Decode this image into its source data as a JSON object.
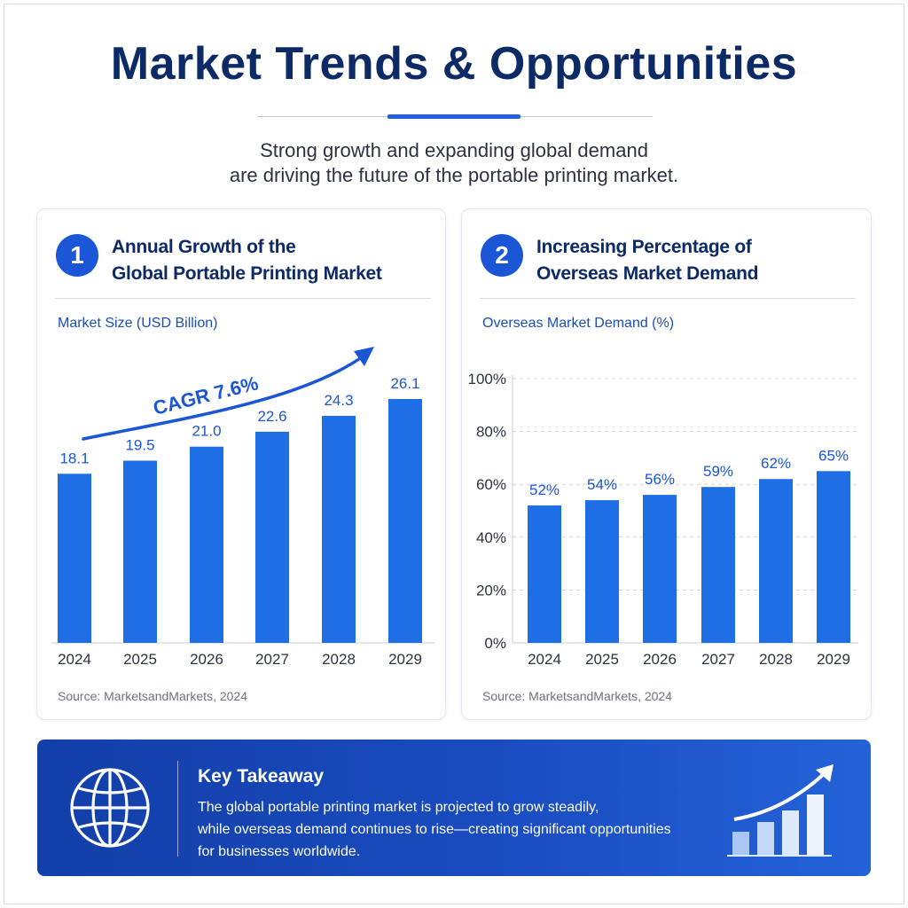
{
  "header": {
    "title": "Market Trends & Opportunities",
    "subtitle_line1": "Strong growth and expanding global demand",
    "subtitle_line2": "are driving the future of the portable printing market."
  },
  "colors": {
    "navy": "#0c2a66",
    "bar_blue": "#1e6fe6",
    "accent": "#1a56d6",
    "takeaway_bg": "#1a4cc0"
  },
  "cards": [
    {
      "number": "1",
      "title_line1": "Annual Growth of the",
      "title_line2": "Global Portable Printing Market",
      "axis_title": "Market Size (USD Billion)",
      "source": "Source: MarketsandMarkets, 2024"
    },
    {
      "number": "2",
      "title_line1": "Increasing Percentage of",
      "title_line2": "Overseas Market Demand",
      "axis_title": "Overseas Market Demand (%)",
      "source": "Source: MarketsandMarkets, 2024"
    }
  ],
  "chart_data": [
    {
      "type": "bar",
      "categories": [
        "2024",
        "2025",
        "2026",
        "2027",
        "2028",
        "2029"
      ],
      "values": [
        18.1,
        19.5,
        21.0,
        22.6,
        24.3,
        26.1
      ],
      "value_labels": [
        "18.1",
        "19.5",
        "21.0",
        "22.6",
        "24.3",
        "26.1"
      ],
      "ylabel": "Market Size (USD Billion)",
      "annotation": "CAGR 7.6%",
      "ylim": [
        0,
        28
      ],
      "grid": false,
      "y_axis_shown": false
    },
    {
      "type": "bar",
      "categories": [
        "2024",
        "2025",
        "2026",
        "2027",
        "2028",
        "2029"
      ],
      "values": [
        52,
        54,
        56,
        59,
        62,
        65
      ],
      "value_labels": [
        "52%",
        "54%",
        "56%",
        "59%",
        "62%",
        "65%"
      ],
      "ylabel": "Overseas Market Demand (%)",
      "yticks": [
        "0%",
        "20%",
        "40%",
        "60%",
        "80%",
        "100%"
      ],
      "ylim": [
        0,
        100
      ],
      "grid": true
    }
  ],
  "takeaway": {
    "icon": "globe-icon",
    "title": "Key Takeaway",
    "line1": "The global portable printing market is projected to grow steadily,",
    "line2": "while overseas demand continues to rise—creating significant opportunities",
    "line3": "for businesses worldwide.",
    "side_icon": "growth-chart-icon"
  }
}
